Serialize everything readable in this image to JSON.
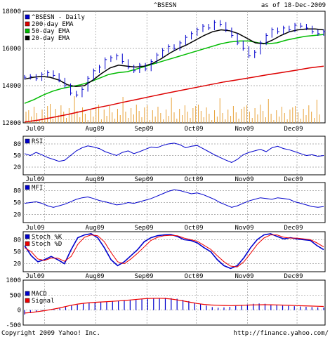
{
  "header": {
    "symbol": "^BSESN",
    "as_of": "as of 18-Dec-2009"
  },
  "footer": {
    "copyright": "Copyright 2009 Yahoo! Inc.",
    "url": "http://finance.yahoo.com/"
  },
  "colors": {
    "price": "#0000cc",
    "ema200": "#dd0000",
    "ema50": "#00bb00",
    "ema20": "#000000",
    "volume": "#e8a23a",
    "rsi": "#0000cc",
    "mfi": "#0000cc",
    "stoch_k": "#0000cc",
    "stoch_d": "#ee0000",
    "macd": "#0000cc",
    "signal": "#ee0000",
    "grid": "#999999"
  },
  "chart_data": [
    {
      "type": "line",
      "panel": "price",
      "xlabels": [
        "Jul09",
        "Aug09",
        "Sep09",
        "Oct09",
        "Nov09",
        "Dec09"
      ],
      "xlabel_dates": [
        "2009-07-01",
        "2009-08-01",
        "2009-09-01",
        "2009-10-01",
        "2009-11-01",
        "2009-12-01"
      ],
      "date_range": [
        "2009-06-18",
        "2009-12-18"
      ],
      "ylim": [
        12000,
        18000
      ],
      "yticks": [
        12000,
        14000,
        16000,
        18000
      ],
      "grid": true,
      "legend_position": "top-left",
      "series": [
        {
          "name": "^BSESN - Daily",
          "values": [
            14450,
            14500,
            14380,
            14600,
            14700,
            14550,
            14300,
            14000,
            13600,
            13500,
            13800,
            14400,
            14800,
            15000,
            15400,
            15500,
            15600,
            15300,
            15000,
            14800,
            15100,
            14900,
            15300,
            15650,
            15900,
            16100,
            16000,
            16300,
            16600,
            16800,
            17000,
            17200,
            17100,
            17400,
            17300,
            17000,
            16700,
            16300,
            16000,
            15600,
            15800,
            16300,
            16700,
            17000,
            16900,
            17100,
            17000,
            17250,
            17200,
            17100,
            16900,
            16800,
            16900
          ]
        },
        {
          "name": "200-day EMA",
          "values": [
            12050,
            12150,
            12300,
            12450,
            12620,
            12800,
            12950,
            13120,
            13280,
            13440,
            13600,
            13750,
            13900,
            14050,
            14200,
            14320,
            14450,
            14580,
            14700,
            14820,
            14950,
            15050
          ]
        },
        {
          "name": "50-day EMA",
          "values": [
            13050,
            13250,
            13500,
            13700,
            13850,
            13950,
            14050,
            14200,
            14400,
            14600,
            14700,
            14750,
            14900,
            15050,
            15200,
            15350,
            15500,
            15650,
            15800,
            15950,
            16100,
            16250,
            16350,
            16400,
            16400,
            16300,
            16250,
            16300,
            16450,
            16550,
            16650,
            16700,
            16750
          ]
        },
        {
          "name": "20-day EMA",
          "values": [
            14350,
            14450,
            14500,
            14450,
            14300,
            14050,
            13950,
            14000,
            14300,
            14650,
            14950,
            15100,
            15050,
            15000,
            15050,
            15200,
            15450,
            15750,
            16000,
            16200,
            16450,
            16700,
            16900,
            17000,
            16950,
            16800,
            16550,
            16300,
            16250,
            16450,
            16700,
            16900,
            17000,
            17050,
            17050,
            17000
          ]
        }
      ]
    },
    {
      "type": "line",
      "panel": "rsi",
      "ylim": [
        0,
        100
      ],
      "yticks": [
        20,
        50,
        80
      ],
      "series": [
        {
          "name": "RSI",
          "values": [
            55,
            50,
            58,
            52,
            45,
            40,
            35,
            38,
            50,
            62,
            70,
            75,
            72,
            68,
            60,
            55,
            50,
            58,
            62,
            55,
            60,
            66,
            72,
            70,
            76,
            80,
            82,
            78,
            70,
            74,
            76,
            68,
            60,
            52,
            45,
            38,
            32,
            40,
            52,
            58,
            62,
            66,
            60,
            70,
            74,
            68,
            65,
            60,
            55,
            50,
            52,
            48,
            50
          ]
        }
      ]
    },
    {
      "type": "line",
      "panel": "mfi",
      "ylim": [
        0,
        100
      ],
      "yticks": [
        20,
        50,
        80
      ],
      "series": [
        {
          "name": "MFI",
          "values": [
            48,
            50,
            52,
            48,
            42,
            38,
            42,
            46,
            52,
            58,
            62,
            64,
            60,
            55,
            52,
            48,
            44,
            46,
            50,
            48,
            52,
            56,
            60,
            66,
            72,
            78,
            82,
            80,
            76,
            72,
            74,
            70,
            64,
            58,
            50,
            44,
            38,
            42,
            48,
            54,
            58,
            62,
            60,
            58,
            62,
            60,
            58,
            52,
            48,
            44,
            40,
            38,
            40
          ]
        }
      ]
    },
    {
      "type": "line",
      "panel": "stoch",
      "ylim": [
        0,
        100
      ],
      "yticks": [
        20,
        50,
        80
      ],
      "series": [
        {
          "name": "Stoch %K",
          "values": [
            65,
            40,
            25,
            30,
            38,
            30,
            20,
            55,
            85,
            92,
            95,
            85,
            60,
            30,
            15,
            25,
            40,
            55,
            75,
            85,
            90,
            92,
            93,
            88,
            80,
            78,
            72,
            60,
            50,
            30,
            15,
            8,
            15,
            35,
            60,
            80,
            92,
            95,
            88,
            82,
            85,
            82,
            80,
            78,
            65,
            55
          ]
        },
        {
          "name": "Stoch %D",
          "values": [
            60,
            50,
            32,
            28,
            34,
            34,
            26,
            38,
            68,
            86,
            92,
            90,
            75,
            48,
            25,
            20,
            32,
            46,
            62,
            78,
            86,
            90,
            91,
            90,
            84,
            80,
            76,
            66,
            56,
            40,
            25,
            14,
            12,
            25,
            46,
            68,
            84,
            92,
            92,
            86,
            84,
            84,
            82,
            80,
            72,
            62
          ]
        }
      ]
    },
    {
      "type": "bar",
      "panel": "macd",
      "ylim": [
        -500,
        1000
      ],
      "yticks": [
        -500,
        0,
        500,
        1000
      ],
      "series": [
        {
          "name": "MACD",
          "values": [
            -150,
            -100,
            -50,
            -20,
            0,
            30,
            60,
            100,
            150,
            180,
            220,
            250,
            260,
            270,
            280,
            300,
            310,
            320,
            330,
            340,
            360,
            380,
            390,
            400,
            410,
            400,
            380,
            340,
            300,
            250,
            200,
            150,
            100,
            80,
            90,
            110,
            140,
            170,
            190,
            210,
            220,
            210,
            190,
            170,
            150,
            140,
            130,
            120,
            110,
            100,
            90,
            80
          ]
        },
        {
          "name": "Signal",
          "values": [
            -100,
            -80,
            -50,
            -20,
            20,
            60,
            110,
            160,
            200,
            230,
            250,
            265,
            275,
            290,
            305,
            320,
            340,
            360,
            380,
            390,
            395,
            390,
            370,
            340,
            300,
            260,
            220,
            190,
            170,
            160,
            155,
            150,
            155,
            160,
            170,
            175,
            180,
            178,
            172,
            165,
            158,
            150,
            142,
            135,
            128,
            120
          ]
        }
      ]
    }
  ]
}
